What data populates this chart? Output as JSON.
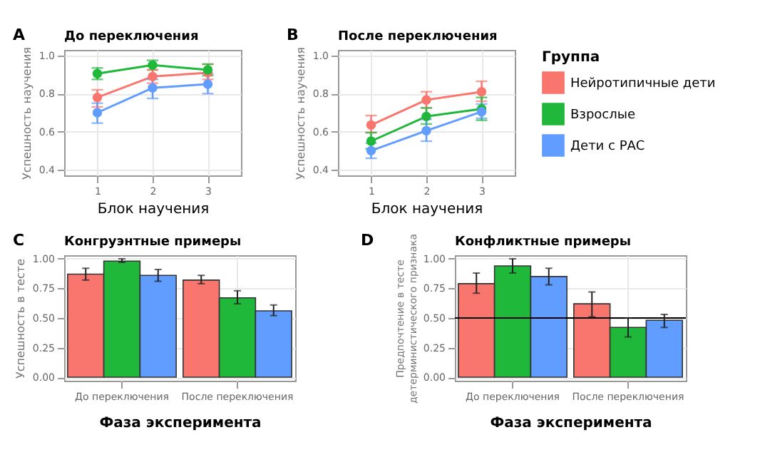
{
  "chart_data": [
    {
      "type": "line",
      "title": "До переключения",
      "annotations": [
        "A"
      ],
      "xlabel": "Блок научения",
      "ylabel": "Успешность научения",
      "x": [
        1,
        2,
        3
      ],
      "xlim": [
        0.4,
        3.6
      ],
      "xticks": [
        1,
        2,
        3
      ],
      "ylim": [
        0.37,
        1.03
      ],
      "yticks": [
        {
          "value": 0.4,
          "label": "0.4"
        },
        {
          "value": 0.6,
          "label": "0.6"
        },
        {
          "value": 0.8,
          "label": "0.8"
        },
        {
          "value": 1.0,
          "label": "1.0"
        }
      ],
      "grid": true,
      "marker": "circle",
      "line_style": "solid",
      "legend": "right",
      "legend_title": "Группа",
      "series": [
        {
          "name": "Нейротипичные дети",
          "color": "#f8766d",
          "values": [
            0.78,
            0.89,
            0.91
          ],
          "errors": [
            [
              0.73,
              0.82
            ],
            [
              0.855,
              0.925
            ],
            [
              0.875,
              0.955
            ]
          ]
        },
        {
          "name": "Взрослые",
          "color": "#1fb83a",
          "values": [
            0.905,
            0.95,
            0.925
          ],
          "errors": [
            [
              0.875,
              0.935
            ],
            [
              0.925,
              0.975
            ],
            [
              0.895,
              0.955
            ]
          ]
        },
        {
          "name": "Дети с РАС",
          "color": "#619cff",
          "values": [
            0.7,
            0.83,
            0.85
          ],
          "errors": [
            [
              0.645,
              0.75
            ],
            [
              0.775,
              0.875
            ],
            [
              0.8,
              0.905
            ]
          ]
        }
      ]
    },
    {
      "type": "line",
      "title": "После переключения",
      "annotations": [
        "B"
      ],
      "xlabel": "Блок научения",
      "ylabel": "Успешность научения",
      "x": [
        1,
        2,
        3
      ],
      "xlim": [
        0.4,
        3.6
      ],
      "xticks": [
        1,
        2,
        3
      ],
      "ylim": [
        0.37,
        1.03
      ],
      "yticks": [
        {
          "value": 0.4,
          "label": "0.4"
        },
        {
          "value": 0.6,
          "label": "0.6"
        },
        {
          "value": 0.8,
          "label": "0.8"
        },
        {
          "value": 1.0,
          "label": "1.0"
        }
      ],
      "grid": true,
      "marker": "circle",
      "line_style": "solid",
      "series": [
        {
          "name": "Нейротипичные дети",
          "color": "#f8766d",
          "values": [
            0.635,
            0.767,
            0.81
          ],
          "errors": [
            [
              0.595,
              0.685
            ],
            [
              0.725,
              0.81
            ],
            [
              0.76,
              0.865
            ]
          ]
        },
        {
          "name": "Взрослые",
          "color": "#1fb83a",
          "values": [
            0.55,
            0.68,
            0.72
          ],
          "errors": [
            [
              0.51,
              0.595
            ],
            [
              0.64,
              0.725
            ],
            [
              0.66,
              0.78
            ]
          ]
        },
        {
          "name": "Дети с РАС",
          "color": "#619cff",
          "values": [
            0.5,
            0.605,
            0.705
          ],
          "errors": [
            [
              0.46,
              0.54
            ],
            [
              0.55,
              0.665
            ],
            [
              0.67,
              0.745
            ]
          ]
        }
      ]
    },
    {
      "type": "bar",
      "title": "Конгруэнтные примеры",
      "annotations": [
        "C"
      ],
      "xlabel": "Фаза эксперимента",
      "ylabel": "Успешность в тесте",
      "categories": [
        "До переключения",
        "После переключения"
      ],
      "ylim": [
        -0.03,
        1.03
      ],
      "yticks": [
        {
          "value": 0,
          "label": "0.00"
        },
        {
          "value": 0.25,
          "label": "0.25"
        },
        {
          "value": 0.5,
          "label": "0.50"
        },
        {
          "value": 0.75,
          "label": "0.75"
        },
        {
          "value": 1,
          "label": "1.00"
        }
      ],
      "grid": true,
      "series": [
        {
          "name": "Нейротипичные дети",
          "color": "#f8766d",
          "values": [
            0.87,
            0.82
          ],
          "errors": [
            [
              0.82,
              0.92
            ],
            [
              0.79,
              0.86
            ]
          ]
        },
        {
          "name": "Взрослые",
          "color": "#1fb83a",
          "values": [
            0.98,
            0.67
          ],
          "errors": [
            [
              0.97,
              1.0
            ],
            [
              0.62,
              0.73
            ]
          ]
        },
        {
          "name": "Дети с РАС",
          "color": "#619cff",
          "values": [
            0.86,
            0.56
          ],
          "errors": [
            [
              0.81,
              0.91
            ],
            [
              0.52,
              0.61
            ]
          ]
        }
      ]
    },
    {
      "type": "bar",
      "title": "Конфликтные примеры",
      "annotations": [
        "D"
      ],
      "xlabel": "Фаза эксперимента",
      "ylabel": "Предпочтение в тесте\nдетерминистического признака",
      "categories": [
        "До переключения",
        "После переключения"
      ],
      "ylim": [
        -0.03,
        1.03
      ],
      "yticks": [
        {
          "value": 0,
          "label": "0.00"
        },
        {
          "value": 0.25,
          "label": "0.25"
        },
        {
          "value": 0.5,
          "label": "0.50"
        },
        {
          "value": 0.75,
          "label": "0.75"
        },
        {
          "value": 1,
          "label": "1.00"
        }
      ],
      "grid": true,
      "ref_lines": [
        {
          "axis": "y",
          "value": 0.5,
          "color": "#000000"
        }
      ],
      "series": [
        {
          "name": "Нейротипичные дети",
          "color": "#f8766d",
          "values": [
            0.79,
            0.62
          ],
          "errors": [
            [
              0.71,
              0.88
            ],
            [
              0.51,
              0.72
            ]
          ]
        },
        {
          "name": "Взрослые",
          "color": "#1fb83a",
          "values": [
            0.94,
            0.42
          ],
          "errors": [
            [
              0.88,
              1.0
            ],
            [
              0.34,
              0.5
            ]
          ]
        },
        {
          "name": "Дети с РАС",
          "color": "#619cff",
          "values": [
            0.85,
            0.48
          ],
          "errors": [
            [
              0.78,
              0.92
            ],
            [
              0.42,
              0.53
            ]
          ]
        }
      ]
    }
  ]
}
